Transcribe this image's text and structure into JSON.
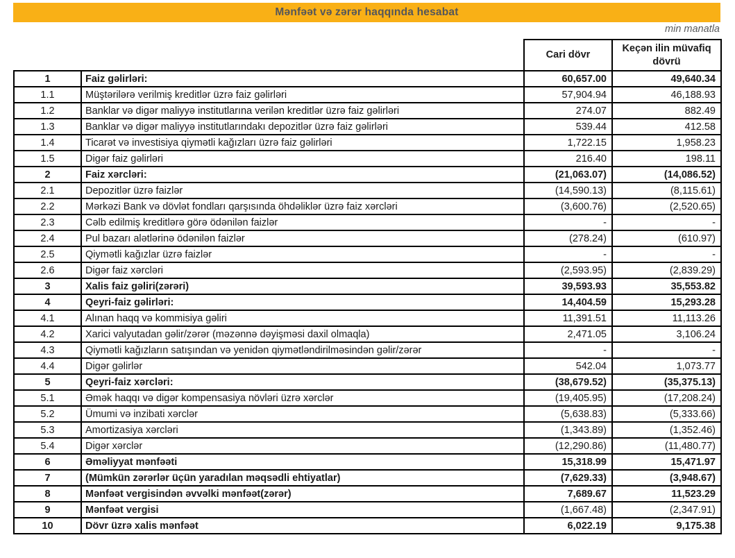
{
  "page": {
    "title": "Mənfəət və zərər haqqında hesabat",
    "unit_note": "min manatla"
  },
  "colors": {
    "accent": "#F9B016",
    "title_text": "#54565A",
    "table_text": "#1B1B1B",
    "border": "#000000"
  },
  "table": {
    "columns": [
      "Cari dövr",
      "Keçən ilin müvafiq dövrü"
    ],
    "rows": [
      {
        "no": "1",
        "label": "Faiz gəlirləri:",
        "current": "60,657.00",
        "previous": "49,640.34",
        "section": true
      },
      {
        "no": "1.1",
        "label": "Müştərilərə verilmiş kreditlər üzrə faiz gəlirləri",
        "current": "57,904.94",
        "previous": "46,188.93"
      },
      {
        "no": "1.2",
        "label": "Banklar və digər maliyyə institutlarına verilən kreditlər üzrə faiz gəlirləri",
        "current": "274.07",
        "previous": "882.49"
      },
      {
        "no": "1.3",
        "label": "Banklar və digər maliyyə institutlarındakı depozitlər üzrə faiz gəlirləri",
        "current": "539.44",
        "previous": "412.58"
      },
      {
        "no": "1.4",
        "label": "Ticarət və investisiya qiymətli kağızları üzrə faiz gəlirləri",
        "current": "1,722.15",
        "previous": "1,958.23"
      },
      {
        "no": "1.5",
        "label": "Digər faiz gəlirləri",
        "current": "216.40",
        "previous": "198.11"
      },
      {
        "no": "2",
        "label": "Faiz xərcləri:",
        "current": "(21,063.07)",
        "previous": "(14,086.52)",
        "section": true
      },
      {
        "no": "2.1",
        "label": "Depozitlər üzrə faizlər",
        "current": "(14,590.13)",
        "previous": "(8,115.61)"
      },
      {
        "no": "2.2",
        "label": "Mərkəzi Bank və dövlət fondları qarşısında öhdəliklər üzrə faiz xərcləri",
        "current": "(3,600.76)",
        "previous": "(2,520.65)"
      },
      {
        "no": "2.3",
        "label": "Cəlb edilmiş kreditlərə görə ödənilən faizlər",
        "current": "-",
        "previous": "-"
      },
      {
        "no": "2.4",
        "label": "Pul bazarı alətlərinə ödənilən faizlər",
        "current": "(278.24)",
        "previous": "(610.97)"
      },
      {
        "no": "2.5",
        "label": "Qiymətli kağızlar üzrə faizlər",
        "current": "-",
        "previous": "-"
      },
      {
        "no": "2.6",
        "label": "Digər faiz xərcləri",
        "current": "(2,593.95)",
        "previous": "(2,839.29)"
      },
      {
        "no": "3",
        "label": "Xalis faiz gəliri(zərəri)",
        "current": "39,593.93",
        "previous": "35,553.82",
        "section": true
      },
      {
        "no": "4",
        "label": "Qeyri-faiz gəlirləri:",
        "current": "14,404.59",
        "previous": "15,293.28",
        "section": true
      },
      {
        "no": "4.1",
        "label": "Alınan haqq və kommisiya gəliri",
        "current": "11,391.51",
        "previous": "11,113.26"
      },
      {
        "no": "4.2",
        "label": "Xarici valyutadan gəlir/zərər (məzənnə dəyişməsi daxil olmaqla)",
        "current": "2,471.05",
        "previous": "3,106.24"
      },
      {
        "no": "4.3",
        "label": "Qiymətli kağızların satışından və yenidən qiymətləndirilməsindən gəlir/zərər",
        "current": "-",
        "previous": "-"
      },
      {
        "no": "4.4",
        "label": "Digər gəlirlər",
        "current": "542.04",
        "previous": "1,073.77"
      },
      {
        "no": "5",
        "label": "Qeyri-faiz xərcləri:",
        "current": "(38,679.52)",
        "previous": "(35,375.13)",
        "section": true
      },
      {
        "no": "5.1",
        "label": "Əmək haqqı və digər kompensasiya növləri üzrə xərclər",
        "current": "(19,405.95)",
        "previous": "(17,208.24)"
      },
      {
        "no": "5.2",
        "label": "Ümumi və inzibati xərclər",
        "current": "(5,638.83)",
        "previous": "(5,333.66)"
      },
      {
        "no": "5.3",
        "label": "Amortizasiya xərcləri",
        "current": "(1,343.89)",
        "previous": "(1,352.46)"
      },
      {
        "no": "5.4",
        "label": "Digər xərclər",
        "current": "(12,290.86)",
        "previous": "(11,480.77)"
      },
      {
        "no": "6",
        "label": "Əməliyyat mənfəəti",
        "current": "15,318.99",
        "previous": "15,471.97",
        "section": true
      },
      {
        "no": "7",
        "label": "(Mümkün zərərlər üçün yaradılan məqsədli ehtiyatlar)",
        "current": "(7,629.33)",
        "previous": "(3,948.67)",
        "section": true
      },
      {
        "no": "8",
        "label": "Mənfəət vergisindən əvvəlki mənfəət(zərər)",
        "current": "7,689.67",
        "previous": "11,523.29",
        "section": true
      },
      {
        "no": "9",
        "label": "Mənfəət vergisi",
        "current": "(1,667.48)",
        "previous": "(2,347.91)",
        "section": true,
        "plain_values": true
      },
      {
        "no": "10",
        "label": "Dövr üzrə xalis mənfəət",
        "current": "6,022.19",
        "previous": "9,175.38",
        "section": true
      }
    ]
  }
}
